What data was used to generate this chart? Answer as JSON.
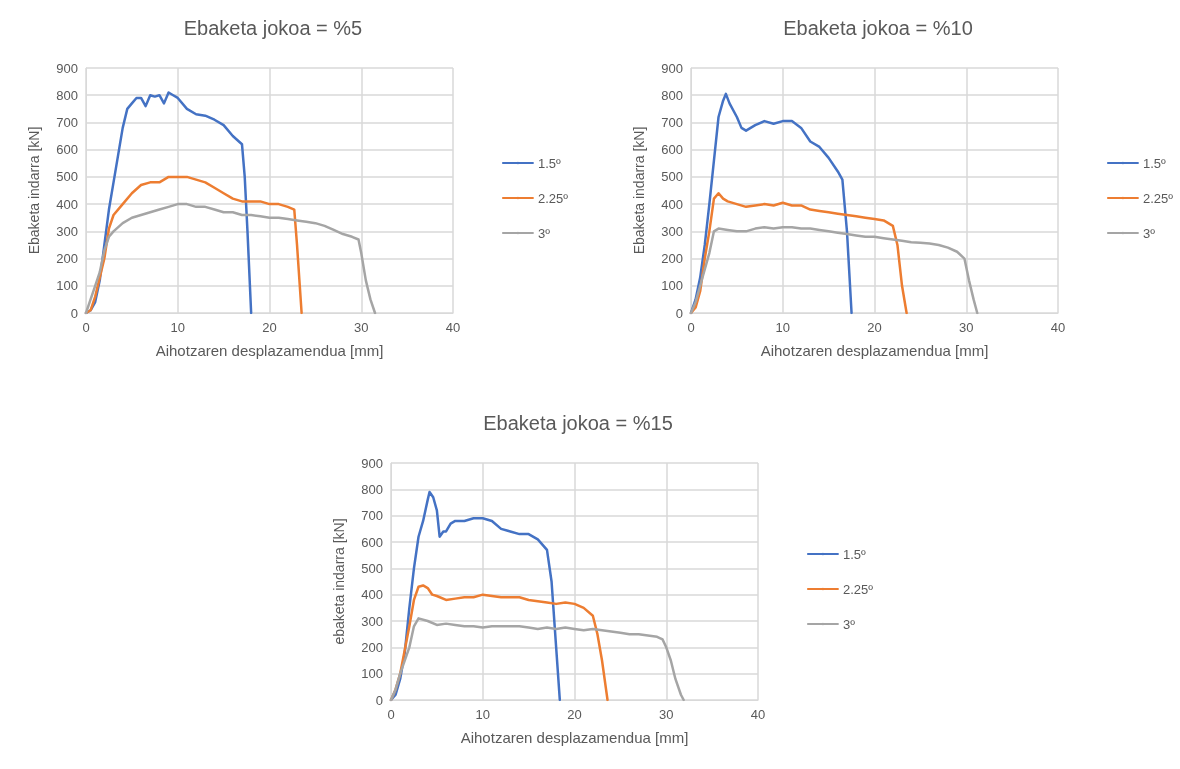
{
  "chart_data": [
    {
      "type": "line",
      "title": "Ebaketa jokoa = %5",
      "xlabel": "Aihotzaren desplazamendua [mm]",
      "ylabel": "Ebaketa indarra [kN]",
      "xlim": [
        0,
        40
      ],
      "xticks": [
        0,
        10,
        20,
        30,
        40
      ],
      "ylim": [
        0,
        900
      ],
      "yticks": [
        0,
        100,
        200,
        300,
        400,
        500,
        600,
        700,
        800,
        900
      ],
      "grid": true,
      "legend": "right",
      "series": [
        {
          "name": "1.5º",
          "color": "#4472c4",
          "x": [
            0,
            0.5,
            1,
            1.5,
            2,
            2.5,
            3,
            3.5,
            4,
            4.5,
            5,
            5.5,
            6,
            6.5,
            7,
            7.5,
            8,
            8.5,
            9,
            9.5,
            10,
            11,
            12,
            13,
            14,
            15,
            16,
            17,
            17.3,
            17.6,
            18
          ],
          "values": [
            0,
            10,
            40,
            120,
            250,
            380,
            480,
            580,
            680,
            750,
            770,
            790,
            790,
            760,
            800,
            795,
            800,
            770,
            810,
            800,
            790,
            750,
            730,
            725,
            710,
            690,
            650,
            620,
            500,
            300,
            0
          ]
        },
        {
          "name": "2.25º",
          "color": "#ed7d31",
          "x": [
            0,
            0.5,
            1,
            2,
            2.5,
            3,
            4,
            5,
            6,
            7,
            8,
            9,
            10,
            11,
            12,
            13,
            14,
            15,
            16,
            17,
            18,
            19,
            20,
            21,
            22,
            22.7,
            23,
            23.3,
            23.5
          ],
          "values": [
            0,
            10,
            60,
            200,
            310,
            360,
            400,
            440,
            470,
            480,
            480,
            500,
            500,
            500,
            490,
            480,
            460,
            440,
            420,
            410,
            410,
            410,
            400,
            400,
            390,
            380,
            250,
            100,
            0
          ]
        },
        {
          "name": "3º",
          "color": "#a5a5a5",
          "x": [
            0,
            0.5,
            1,
            1.5,
            2,
            2.5,
            3,
            4,
            5,
            6,
            7,
            8,
            9,
            10,
            11,
            12,
            13,
            14,
            15,
            16,
            17,
            18,
            19,
            20,
            21,
            22,
            23,
            24,
            25,
            26,
            27,
            28,
            29,
            29.7,
            30,
            30.5,
            31,
            31.5
          ],
          "values": [
            0,
            50,
            100,
            150,
            230,
            280,
            300,
            330,
            350,
            360,
            370,
            380,
            390,
            400,
            400,
            390,
            390,
            380,
            370,
            370,
            360,
            360,
            355,
            350,
            350,
            345,
            340,
            335,
            330,
            320,
            305,
            290,
            280,
            270,
            220,
            120,
            50,
            0
          ]
        }
      ]
    },
    {
      "type": "line",
      "title": "Ebaketa jokoa = %10",
      "xlabel": "Aihotzaren desplazamendua [mm]",
      "ylabel": "Ebaketa indarra [kN]",
      "xlim": [
        0,
        40
      ],
      "xticks": [
        0,
        10,
        20,
        30,
        40
      ],
      "ylim": [
        0,
        900
      ],
      "yticks": [
        0,
        100,
        200,
        300,
        400,
        500,
        600,
        700,
        800,
        900
      ],
      "grid": true,
      "legend": "right",
      "series": [
        {
          "name": "1.5º",
          "color": "#4472c4",
          "x": [
            0,
            0.5,
            1,
            1.5,
            2,
            2.5,
            3,
            3.5,
            3.8,
            4.2,
            5,
            5.5,
            6,
            7,
            8,
            9,
            10,
            11,
            12,
            13,
            14,
            15,
            16,
            16.5,
            17,
            17.5
          ],
          "values": [
            0,
            50,
            130,
            250,
            400,
            560,
            720,
            780,
            805,
            770,
            720,
            680,
            670,
            690,
            705,
            695,
            705,
            705,
            680,
            630,
            610,
            570,
            520,
            490,
            300,
            0
          ]
        },
        {
          "name": "2.25º",
          "color": "#ed7d31",
          "x": [
            0,
            0.5,
            1,
            1.5,
            2,
            2.5,
            3,
            3.5,
            4,
            5,
            6,
            7,
            8,
            9,
            10,
            11,
            12,
            13,
            14,
            15,
            16,
            17,
            18,
            19,
            20,
            21,
            22,
            22.5,
            23,
            23.5
          ],
          "values": [
            0,
            20,
            80,
            200,
            300,
            420,
            440,
            420,
            410,
            400,
            390,
            395,
            400,
            395,
            405,
            395,
            395,
            380,
            375,
            370,
            365,
            360,
            355,
            350,
            345,
            340,
            320,
            250,
            100,
            0
          ]
        },
        {
          "name": "3º",
          "color": "#a5a5a5",
          "x": [
            0,
            0.5,
            1,
            2,
            2.5,
            3,
            4,
            5,
            6,
            7,
            8,
            9,
            10,
            11,
            12,
            13,
            14,
            15,
            16,
            17,
            18,
            19,
            20,
            21,
            22,
            23,
            24,
            25,
            26,
            27,
            28,
            29,
            29.8,
            30.3,
            30.8,
            31.2
          ],
          "values": [
            0,
            40,
            100,
            220,
            300,
            310,
            305,
            300,
            300,
            310,
            315,
            310,
            315,
            315,
            310,
            310,
            305,
            300,
            295,
            290,
            285,
            280,
            280,
            275,
            270,
            265,
            260,
            258,
            255,
            250,
            240,
            225,
            200,
            120,
            50,
            0
          ]
        }
      ]
    },
    {
      "type": "line",
      "title": "Ebaketa jokoa = %15",
      "xlabel": "Aihotzaren desplazamendua [mm]",
      "ylabel": "ebaketa indarra [kN]",
      "xlim": [
        0,
        40
      ],
      "xticks": [
        0,
        10,
        20,
        30,
        40
      ],
      "ylim": [
        0,
        900
      ],
      "yticks": [
        0,
        100,
        200,
        300,
        400,
        500,
        600,
        700,
        800,
        900
      ],
      "grid": true,
      "legend": "right",
      "series": [
        {
          "name": "1.5º",
          "color": "#4472c4",
          "x": [
            0,
            0.5,
            1,
            1.5,
            2,
            2.5,
            3,
            3.5,
            4,
            4.2,
            4.6,
            5,
            5.3,
            5.7,
            6,
            6.5,
            7,
            8,
            9,
            10,
            11,
            12,
            13,
            14,
            15,
            16,
            17,
            17.5,
            18,
            18.4
          ],
          "values": [
            0,
            20,
            80,
            180,
            350,
            500,
            620,
            680,
            760,
            790,
            770,
            720,
            620,
            640,
            640,
            670,
            680,
            680,
            690,
            690,
            680,
            650,
            640,
            630,
            630,
            610,
            570,
            450,
            200,
            0
          ]
        },
        {
          "name": "2.25º",
          "color": "#ed7d31",
          "x": [
            0,
            0.5,
            1,
            2,
            2.5,
            3,
            3.5,
            4,
            4.5,
            5,
            6,
            7,
            8,
            9,
            10,
            11,
            12,
            13,
            14,
            15,
            16,
            17,
            18,
            19,
            20,
            21,
            22,
            22.5,
            23,
            23.6
          ],
          "values": [
            0,
            40,
            100,
            280,
            380,
            430,
            435,
            425,
            400,
            395,
            380,
            385,
            390,
            390,
            400,
            395,
            390,
            390,
            390,
            380,
            375,
            370,
            365,
            370,
            365,
            350,
            320,
            250,
            150,
            0
          ]
        },
        {
          "name": "3º",
          "color": "#a5a5a5",
          "x": [
            0,
            0.5,
            1,
            2,
            2.5,
            3,
            4,
            5,
            6,
            7,
            8,
            9,
            10,
            11,
            12,
            13,
            14,
            15,
            16,
            17,
            18,
            19,
            20,
            21,
            22,
            23,
            24,
            25,
            26,
            27,
            28,
            29,
            29.6,
            30,
            30.5,
            31,
            31.6,
            31.9
          ],
          "values": [
            0,
            40,
            100,
            200,
            280,
            310,
            300,
            285,
            290,
            285,
            280,
            280,
            275,
            280,
            280,
            280,
            280,
            275,
            270,
            275,
            270,
            275,
            270,
            265,
            270,
            265,
            260,
            255,
            250,
            250,
            245,
            240,
            230,
            200,
            150,
            80,
            20,
            0
          ]
        }
      ]
    }
  ]
}
